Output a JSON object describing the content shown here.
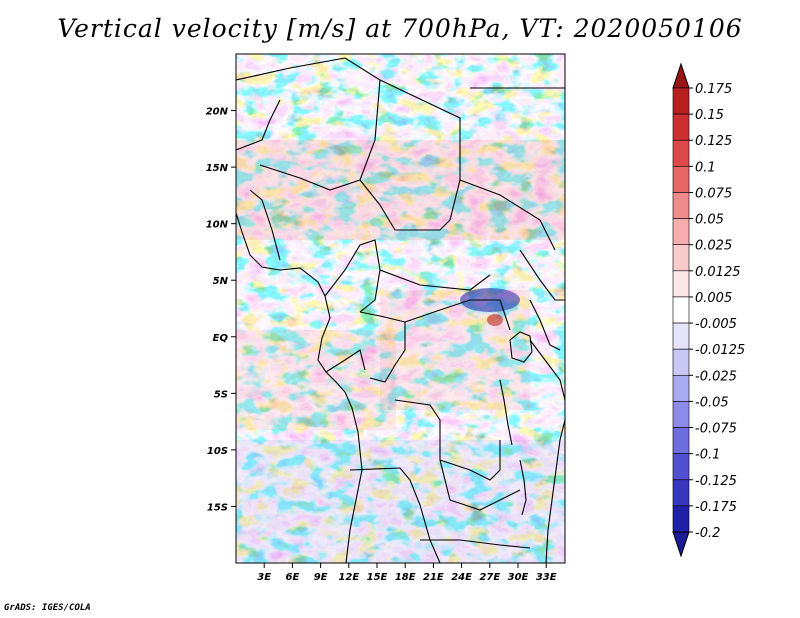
{
  "title": "Vertical velocity [m/s] at 700hPa, VT: 2020050106",
  "footer": "GrADS: IGES/COLA",
  "map": {
    "lon_range": [
      0,
      35
    ],
    "lat_range": [
      -20,
      25
    ],
    "lat_ticks": [
      {
        "value": 20,
        "label": "20N"
      },
      {
        "value": 15,
        "label": "15N"
      },
      {
        "value": 10,
        "label": "10N"
      },
      {
        "value": 5,
        "label": "5N"
      },
      {
        "value": 0,
        "label": "EQ"
      },
      {
        "value": -5,
        "label": "5S"
      },
      {
        "value": -10,
        "label": "10S"
      },
      {
        "value": -15,
        "label": "15S"
      }
    ],
    "lon_ticks": [
      {
        "value": 3,
        "label": "3E"
      },
      {
        "value": 6,
        "label": "6E"
      },
      {
        "value": 9,
        "label": "9E"
      },
      {
        "value": 12,
        "label": "12E"
      },
      {
        "value": 15,
        "label": "15E"
      },
      {
        "value": 18,
        "label": "18E"
      },
      {
        "value": 21,
        "label": "21E"
      },
      {
        "value": 24,
        "label": "24E"
      },
      {
        "value": 27,
        "label": "27E"
      },
      {
        "value": 30,
        "label": "30E"
      },
      {
        "value": 33,
        "label": "33E"
      }
    ]
  },
  "colorbar": {
    "levels": [
      {
        "label": "0.175",
        "color": "#a01818"
      },
      {
        "label": "0.15",
        "color": "#b82020"
      },
      {
        "label": "0.125",
        "color": "#cc3030"
      },
      {
        "label": "0.1",
        "color": "#dd4848"
      },
      {
        "label": "0.075",
        "color": "#e86868"
      },
      {
        "label": "0.05",
        "color": "#f08c8c"
      },
      {
        "label": "0.025",
        "color": "#f5adad"
      },
      {
        "label": "0.0125",
        "color": "#f9cccc"
      },
      {
        "label": "0.005",
        "color": "#fce6e6"
      },
      {
        "label": "-0.005",
        "color": "#ffffff"
      },
      {
        "label": "-0.0125",
        "color": "#e4e4fb"
      },
      {
        "label": "-0.025",
        "color": "#c8c8f6"
      },
      {
        "label": "-0.05",
        "color": "#aaaaf0"
      },
      {
        "label": "-0.075",
        "color": "#8c8ce8"
      },
      {
        "label": "-0.1",
        "color": "#6e6ede"
      },
      {
        "label": "-0.125",
        "color": "#5050d0"
      },
      {
        "label": "-0.175",
        "color": "#3636be"
      },
      {
        "label": "-0.2",
        "color": "#2020a8"
      }
    ],
    "top_color": "#9a1414",
    "bottom_color": "#1a1a96"
  }
}
